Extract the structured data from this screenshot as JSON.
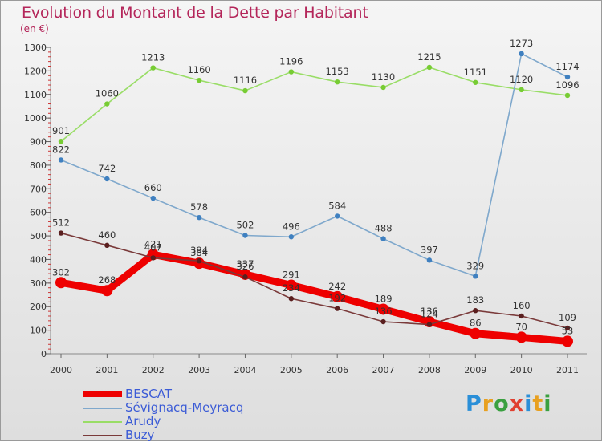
{
  "title": "Evolution du Montant de la Dette par Habitant",
  "unit_label": "(en €)",
  "logo": {
    "letters": [
      "P",
      "r",
      "o",
      "x",
      "i",
      "t",
      "i"
    ],
    "colors": [
      "#2a8fd8",
      "#e8a020",
      "#3aa040",
      "#e04030",
      "#2a8fd8",
      "#e8a020",
      "#3aa040"
    ]
  },
  "chart_data": {
    "type": "line",
    "title": "Evolution du Montant de la Dette par Habitant",
    "ylabel": "(en €)",
    "xlabel": "",
    "categories": [
      "2000",
      "2001",
      "2002",
      "2003",
      "2004",
      "2005",
      "2006",
      "2007",
      "2008",
      "2009",
      "2010",
      "2011"
    ],
    "yticks": [
      0,
      100,
      200,
      300,
      400,
      500,
      600,
      700,
      800,
      900,
      1000,
      1100,
      1200,
      1300
    ],
    "ylim": [
      0,
      1300
    ],
    "grid": false,
    "legend_position": "bottom-left",
    "series": [
      {
        "name": "BESCAT",
        "color": "#ee0000",
        "marker_color": "#ee0000",
        "values": [
          302,
          268,
          421,
          384,
          337,
          291,
          242,
          189,
          136,
          86,
          70,
          53
        ],
        "labels": [
          "302",
          "268",
          "421",
          "384",
          "337",
          "291",
          "242",
          "189",
          "136",
          "86",
          "70",
          "53"
        ]
      },
      {
        "name": "Sévignacq-Meyracq",
        "color": "#7fa8cc",
        "marker_color": "#3f80c0",
        "values": [
          822,
          742,
          660,
          578,
          502,
          496,
          584,
          488,
          397,
          329,
          1273,
          1174
        ],
        "labels": [
          "822",
          "742",
          "660",
          "578",
          "502",
          "496",
          "584",
          "488",
          "397",
          "329",
          "1273",
          "1174"
        ]
      },
      {
        "name": "Arudy",
        "color": "#99dd66",
        "marker_color": "#77cc33",
        "values": [
          901,
          1060,
          1213,
          1160,
          1116,
          1196,
          1153,
          1130,
          1215,
          1151,
          1120,
          1096
        ],
        "labels": [
          "901",
          "1060",
          "1213",
          "1160",
          "1116",
          "1196",
          "1153",
          "1130",
          "1215",
          "1151",
          "1120",
          "1096"
        ]
      },
      {
        "name": "Buzy",
        "color": "#7a3a3a",
        "marker_color": "#5a1f1f",
        "values": [
          512,
          460,
          407,
          394,
          326,
          234,
          192,
          136,
          124,
          183,
          160,
          109
        ],
        "labels": [
          "512",
          "460",
          "407",
          "394",
          "326",
          "234",
          "192",
          "136",
          "124",
          "183",
          "160",
          "109"
        ]
      }
    ]
  }
}
